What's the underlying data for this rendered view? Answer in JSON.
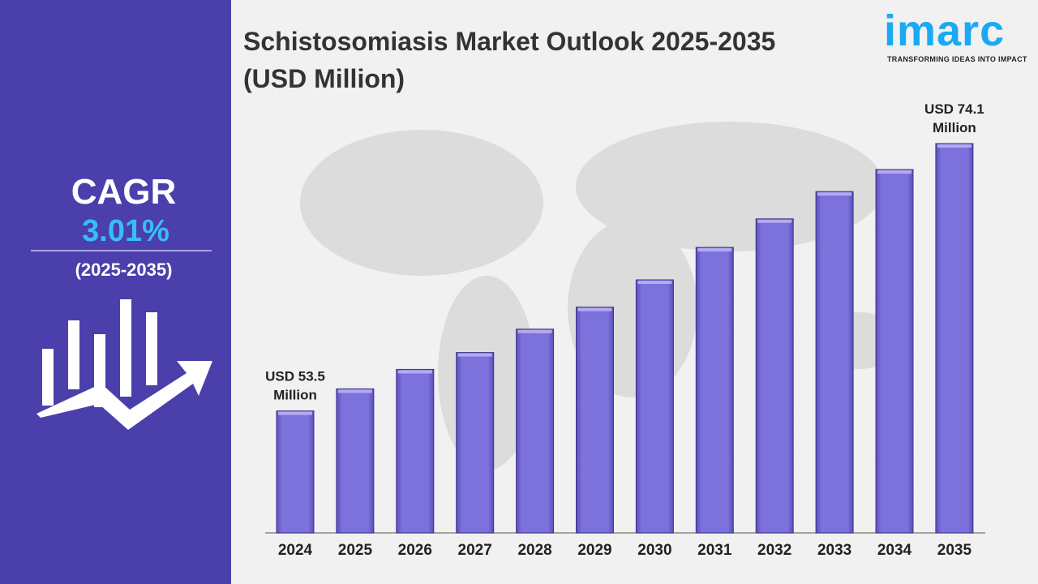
{
  "sidebar": {
    "cagr_label": "CAGR",
    "cagr_value": "3.01%",
    "period": "(2025-2035)",
    "icon": "bar-chart-growth-arrow-icon"
  },
  "logo": {
    "word": "imarc",
    "tagline": "TRANSFORMING IDEAS INTO IMPACT",
    "color": "#1aa9f2"
  },
  "colors": {
    "sidebar": "#4b3fac",
    "bar": "#7b6fd9",
    "accent": "#38bdf8"
  },
  "chart_data": {
    "type": "bar",
    "title": "Schistosomiasis Market Outlook 2025-2035 (USD Million)",
    "categories": [
      "2024",
      "2025",
      "2026",
      "2027",
      "2028",
      "2029",
      "2030",
      "2031",
      "2032",
      "2033",
      "2034",
      "2035"
    ],
    "values": [
      53.5,
      55.2,
      56.7,
      58.0,
      59.8,
      61.5,
      63.6,
      66.1,
      68.3,
      70.4,
      72.1,
      74.1
    ],
    "annotations": [
      {
        "category": "2024",
        "line1": "USD 53.5",
        "line2": "Million"
      },
      {
        "category": "2035",
        "line1": "USD 74.1",
        "line2": "Million"
      }
    ],
    "xlabel": "",
    "ylabel": "",
    "grid": false,
    "legend": "none"
  }
}
